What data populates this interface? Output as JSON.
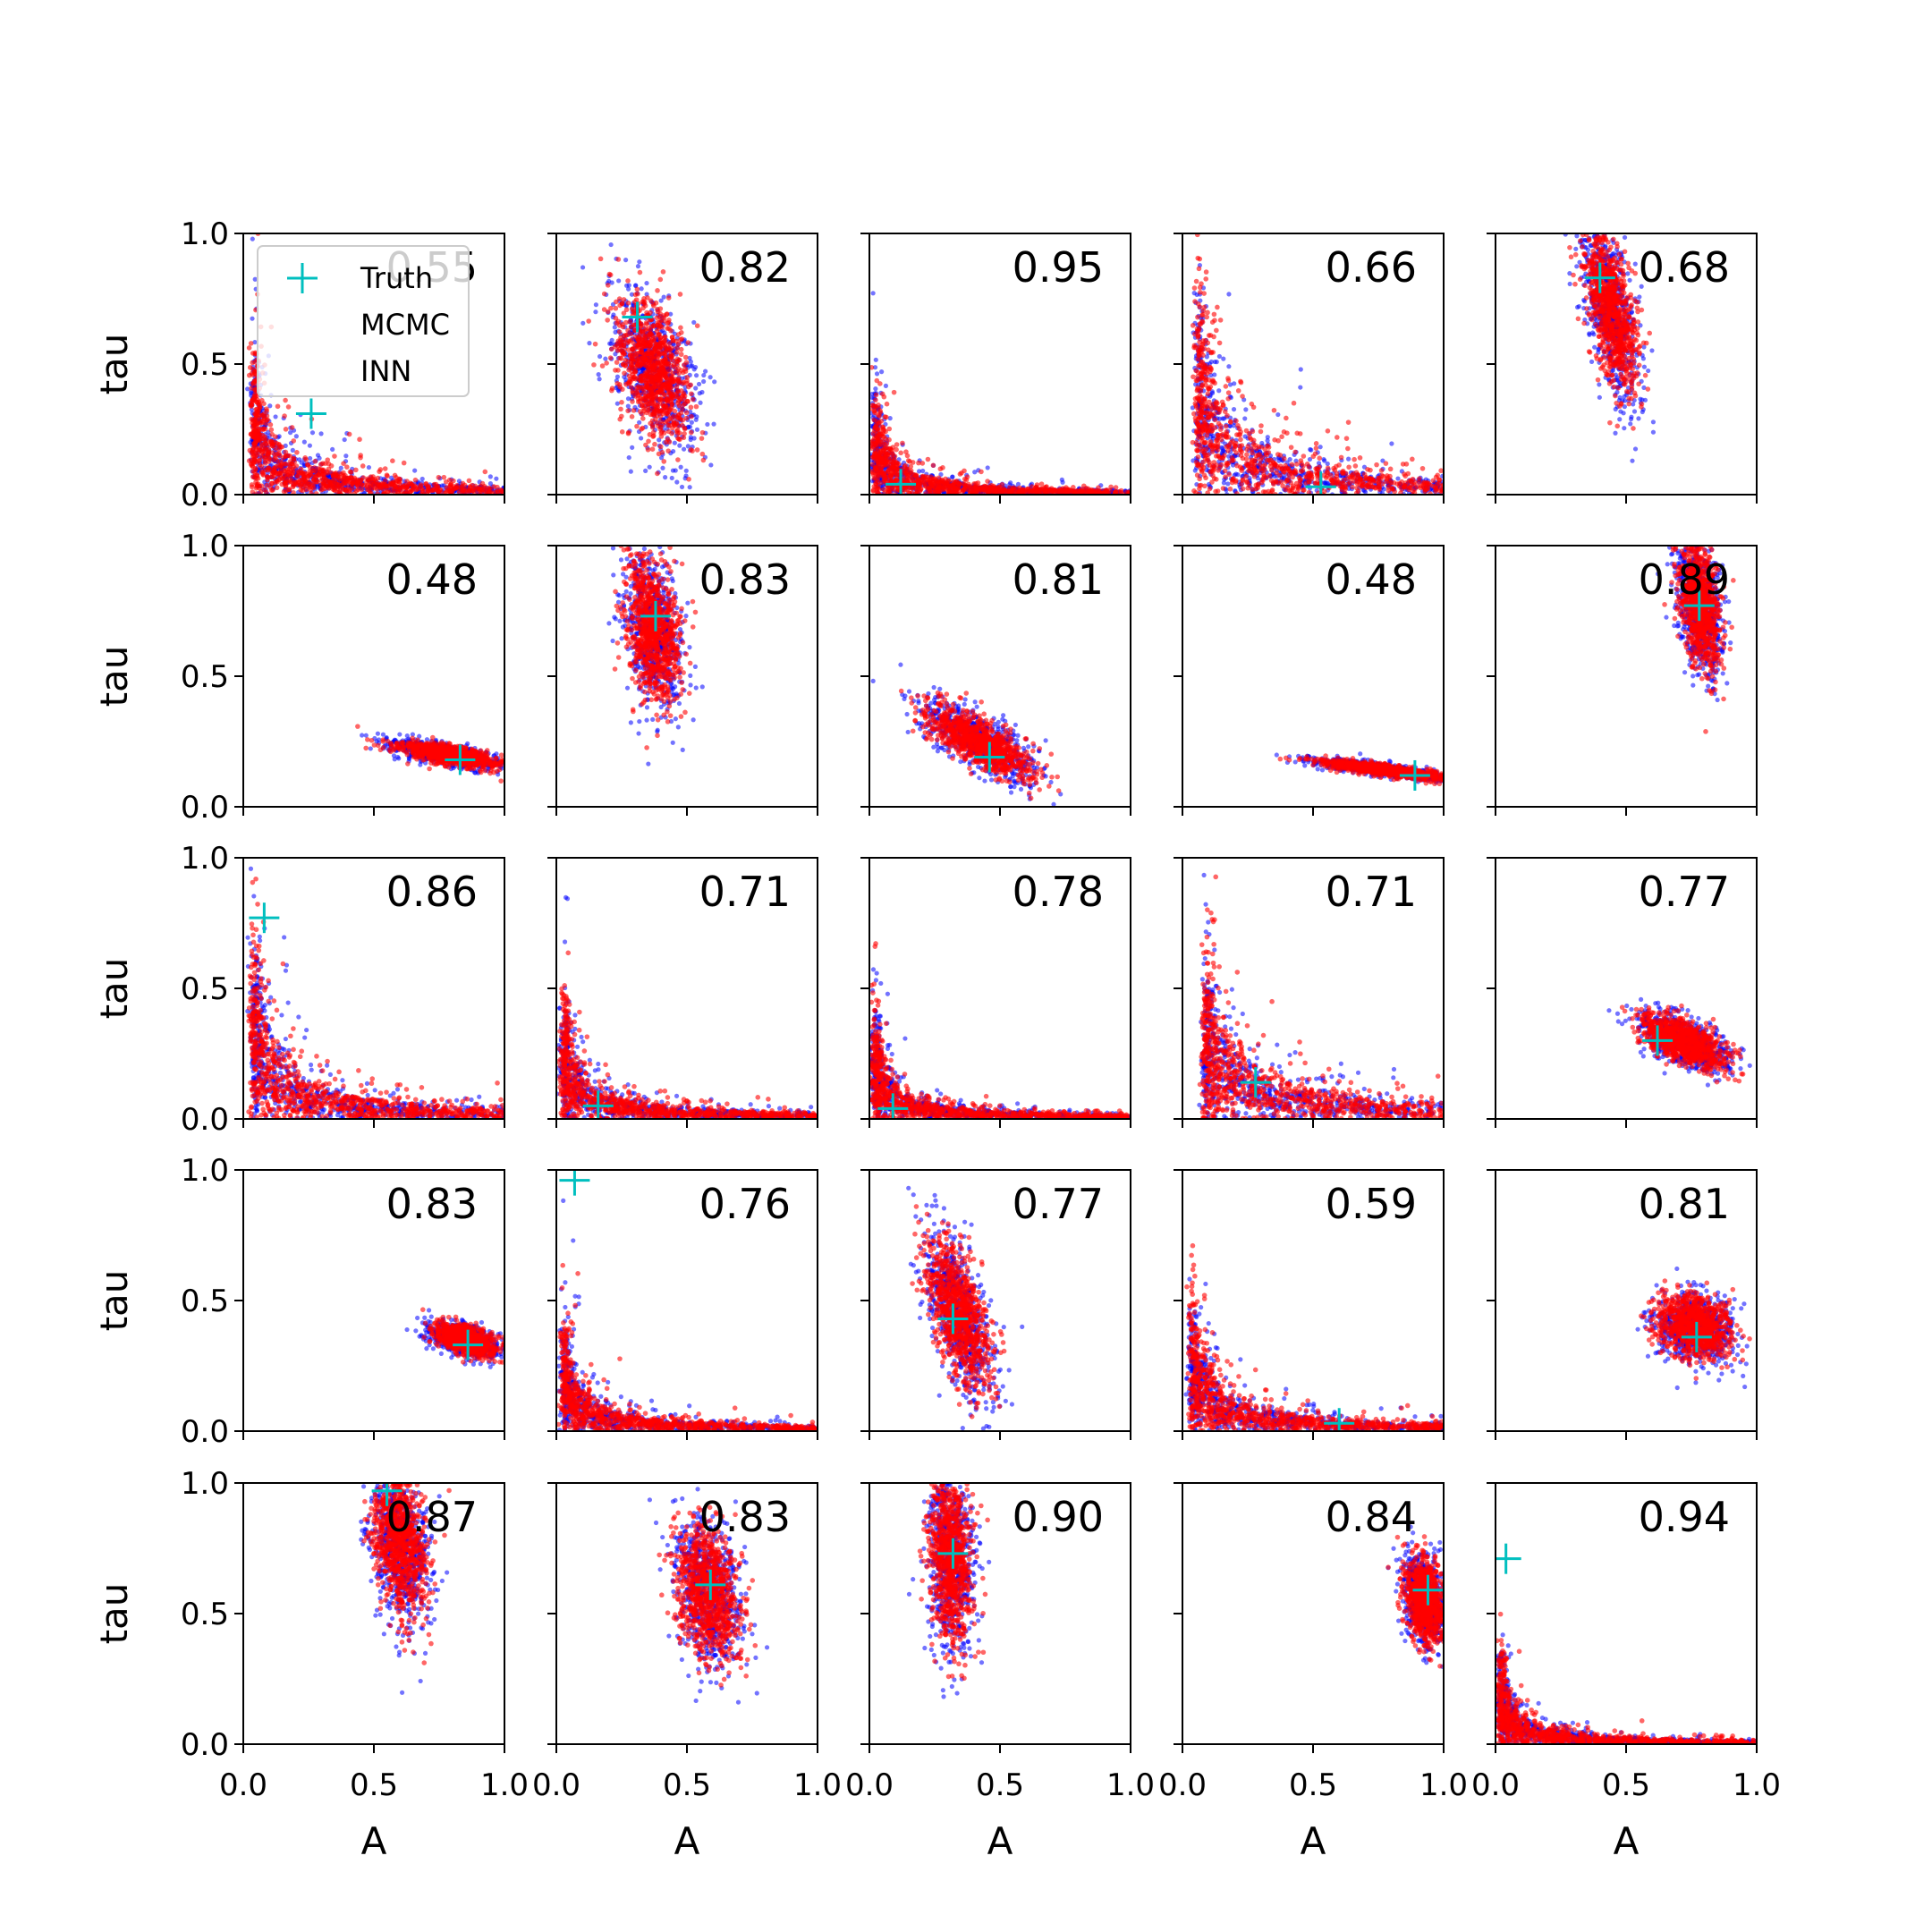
{
  "chart_data": {
    "type": "scatter",
    "grid": "5x5 subplots",
    "xlabel": "A",
    "ylabel": "tau",
    "xlim": [
      0,
      1
    ],
    "ylim": [
      0,
      1
    ],
    "x_ticks": [
      "0.0",
      "0.5",
      "1.0"
    ],
    "y_ticks": [
      "0.0",
      "0.5",
      "1.0"
    ],
    "gridlines": false,
    "legend": {
      "location": "top-left of first panel",
      "entries": [
        {
          "label": "Truth",
          "color": "#00bfbf",
          "marker": "plus"
        },
        {
          "label": "MCMC",
          "color": "#0000ff",
          "marker": "dot"
        },
        {
          "label": "INN",
          "color": "#ff0000",
          "marker": "dot"
        }
      ]
    },
    "colors": {
      "mcmc": "#0000ff",
      "inn": "#ff0000",
      "truth": "#00bfbf"
    },
    "panels": [
      {
        "row": 0,
        "col": 0,
        "corr": "0.55",
        "truth": [
          0.26,
          0.31
        ],
        "shape": "L",
        "cx": 0.1,
        "cy": 0.35,
        "sx": 0.08,
        "sy": 0.3
      },
      {
        "row": 0,
        "col": 1,
        "corr": "0.82",
        "truth": [
          0.31,
          0.68
        ],
        "shape": "blob",
        "cx": 0.37,
        "cy": 0.48,
        "sx": 0.07,
        "sy": 0.14,
        "rho": -0.45
      },
      {
        "row": 0,
        "col": 2,
        "corr": "0.95",
        "truth": [
          0.12,
          0.04
        ],
        "shape": "L",
        "cx": 0.06,
        "cy": 0.3,
        "sx": 0.06,
        "sy": 0.32
      },
      {
        "row": 0,
        "col": 3,
        "corr": "0.66",
        "truth": [
          0.53,
          0.03
        ],
        "shape": "L",
        "cx": 0.15,
        "cy": 0.45,
        "sx": 0.09,
        "sy": 0.32
      },
      {
        "row": 0,
        "col": 4,
        "corr": "0.68",
        "truth": [
          0.4,
          0.83
        ],
        "shape": "blob",
        "cx": 0.44,
        "cy": 0.72,
        "sx": 0.05,
        "sy": 0.16,
        "rho": -0.6
      },
      {
        "row": 1,
        "col": 0,
        "corr": "0.48",
        "truth": [
          0.83,
          0.18
        ],
        "shape": "blob",
        "cx": 0.78,
        "cy": 0.2,
        "sx": 0.1,
        "sy": 0.025,
        "rho": -0.7
      },
      {
        "row": 1,
        "col": 1,
        "corr": "0.83",
        "truth": [
          0.38,
          0.73
        ],
        "shape": "blob",
        "cx": 0.37,
        "cy": 0.68,
        "sx": 0.05,
        "sy": 0.14,
        "rho": -0.3
      },
      {
        "row": 1,
        "col": 2,
        "corr": "0.81",
        "truth": [
          0.46,
          0.19
        ],
        "shape": "blob",
        "cx": 0.42,
        "cy": 0.25,
        "sx": 0.1,
        "sy": 0.07,
        "rho": -0.75
      },
      {
        "row": 1,
        "col": 3,
        "corr": "0.48",
        "truth": [
          0.89,
          0.12
        ],
        "shape": "blob",
        "cx": 0.78,
        "cy": 0.14,
        "sx": 0.13,
        "sy": 0.02,
        "rho": -0.85
      },
      {
        "row": 1,
        "col": 4,
        "corr": "0.89",
        "truth": [
          0.78,
          0.77
        ],
        "shape": "blob",
        "cx": 0.78,
        "cy": 0.77,
        "sx": 0.04,
        "sy": 0.12,
        "rho": -0.4
      },
      {
        "row": 2,
        "col": 0,
        "corr": "0.86",
        "truth": [
          0.08,
          0.77
        ],
        "shape": "L",
        "cx": 0.1,
        "cy": 0.45,
        "sx": 0.08,
        "sy": 0.32
      },
      {
        "row": 2,
        "col": 1,
        "corr": "0.71",
        "truth": [
          0.16,
          0.05
        ],
        "shape": "L",
        "cx": 0.07,
        "cy": 0.35,
        "sx": 0.07,
        "sy": 0.33
      },
      {
        "row": 2,
        "col": 2,
        "corr": "0.78",
        "truth": [
          0.09,
          0.04
        ],
        "shape": "L",
        "cx": 0.05,
        "cy": 0.35,
        "sx": 0.05,
        "sy": 0.33
      },
      {
        "row": 2,
        "col": 3,
        "corr": "0.71",
        "truth": [
          0.28,
          0.14
        ],
        "shape": "L",
        "cx": 0.22,
        "cy": 0.3,
        "sx": 0.1,
        "sy": 0.15
      },
      {
        "row": 2,
        "col": 4,
        "corr": "0.77",
        "truth": [
          0.62,
          0.3
        ],
        "shape": "blob",
        "cx": 0.72,
        "cy": 0.3,
        "sx": 0.08,
        "sy": 0.05,
        "rho": -0.6
      },
      {
        "row": 3,
        "col": 0,
        "corr": "0.83",
        "truth": [
          0.86,
          0.33
        ],
        "shape": "blob",
        "cx": 0.85,
        "cy": 0.35,
        "sx": 0.06,
        "sy": 0.03,
        "rho": -0.5
      },
      {
        "row": 3,
        "col": 1,
        "corr": "0.76",
        "truth": [
          0.07,
          0.96
        ],
        "shape": "L",
        "cx": 0.07,
        "cy": 0.3,
        "sx": 0.06,
        "sy": 0.3
      },
      {
        "row": 3,
        "col": 2,
        "corr": "0.77",
        "truth": [
          0.32,
          0.43
        ],
        "shape": "blob",
        "cx": 0.34,
        "cy": 0.45,
        "sx": 0.06,
        "sy": 0.14,
        "rho": -0.6
      },
      {
        "row": 3,
        "col": 3,
        "corr": "0.59",
        "truth": [
          0.6,
          0.03
        ],
        "shape": "L",
        "cx": 0.09,
        "cy": 0.35,
        "sx": 0.08,
        "sy": 0.33
      },
      {
        "row": 3,
        "col": 4,
        "corr": "0.81",
        "truth": [
          0.77,
          0.36
        ],
        "shape": "blob",
        "cx": 0.76,
        "cy": 0.4,
        "sx": 0.07,
        "sy": 0.06,
        "rho": -0.2
      },
      {
        "row": 4,
        "col": 0,
        "corr": "0.87",
        "truth": [
          0.55,
          0.97
        ],
        "shape": "blob",
        "cx": 0.6,
        "cy": 0.77,
        "sx": 0.05,
        "sy": 0.14,
        "rho": -0.3
      },
      {
        "row": 4,
        "col": 1,
        "corr": "0.83",
        "truth": [
          0.59,
          0.61
        ],
        "shape": "blob",
        "cx": 0.58,
        "cy": 0.58,
        "sx": 0.06,
        "sy": 0.13,
        "rho": -0.3
      },
      {
        "row": 4,
        "col": 2,
        "corr": "0.90",
        "truth": [
          0.32,
          0.73
        ],
        "shape": "blob",
        "cx": 0.31,
        "cy": 0.72,
        "sx": 0.04,
        "sy": 0.17,
        "rho": -0.2
      },
      {
        "row": 4,
        "col": 3,
        "corr": "0.84",
        "truth": [
          0.94,
          0.59
        ],
        "shape": "blob",
        "cx": 0.93,
        "cy": 0.55,
        "sx": 0.04,
        "sy": 0.08,
        "rho": -0.3
      },
      {
        "row": 4,
        "col": 4,
        "corr": "0.94",
        "truth": [
          0.04,
          0.71
        ],
        "shape": "L",
        "cx": 0.05,
        "cy": 0.3,
        "sx": 0.05,
        "sy": 0.33
      }
    ]
  }
}
